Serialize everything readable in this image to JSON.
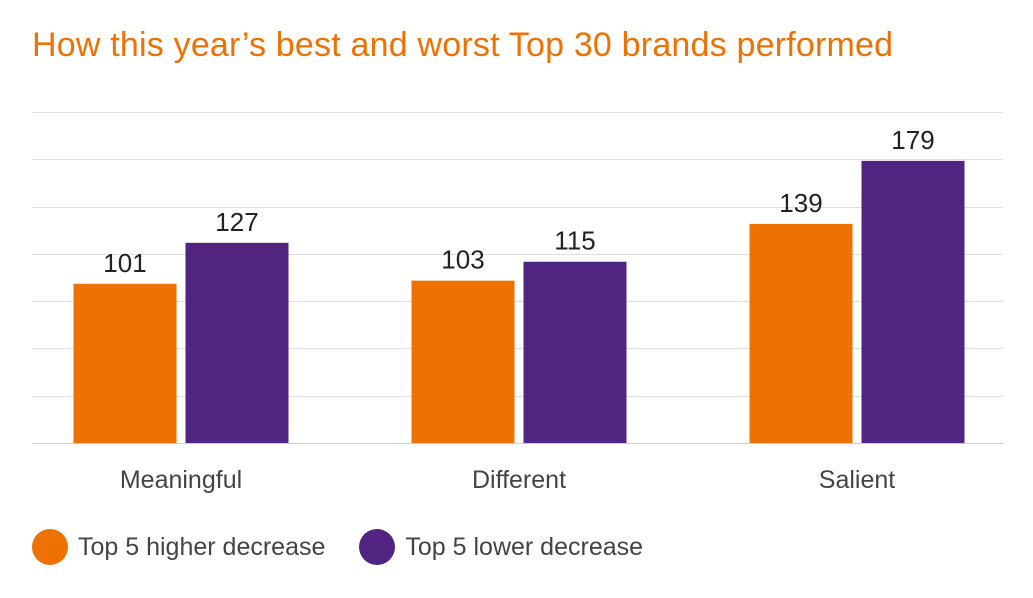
{
  "chart_data": {
    "type": "bar",
    "title": "How this year’s best and worst Top 30 brands performed",
    "categories": [
      "Meaningful",
      "Different",
      "Salient"
    ],
    "series": [
      {
        "name": "Top 5 higher decrease",
        "values": [
          101,
          103,
          139
        ],
        "color": "#ee7203"
      },
      {
        "name": "Top 5 lower decrease",
        "values": [
          127,
          115,
          179
        ],
        "color": "#512482"
      }
    ],
    "ylim": [
      0,
      210
    ],
    "y_gridline_step": 30,
    "grid": true,
    "data_labels": true,
    "legend": "bottom-left",
    "xlabel": "",
    "ylabel": ""
  }
}
